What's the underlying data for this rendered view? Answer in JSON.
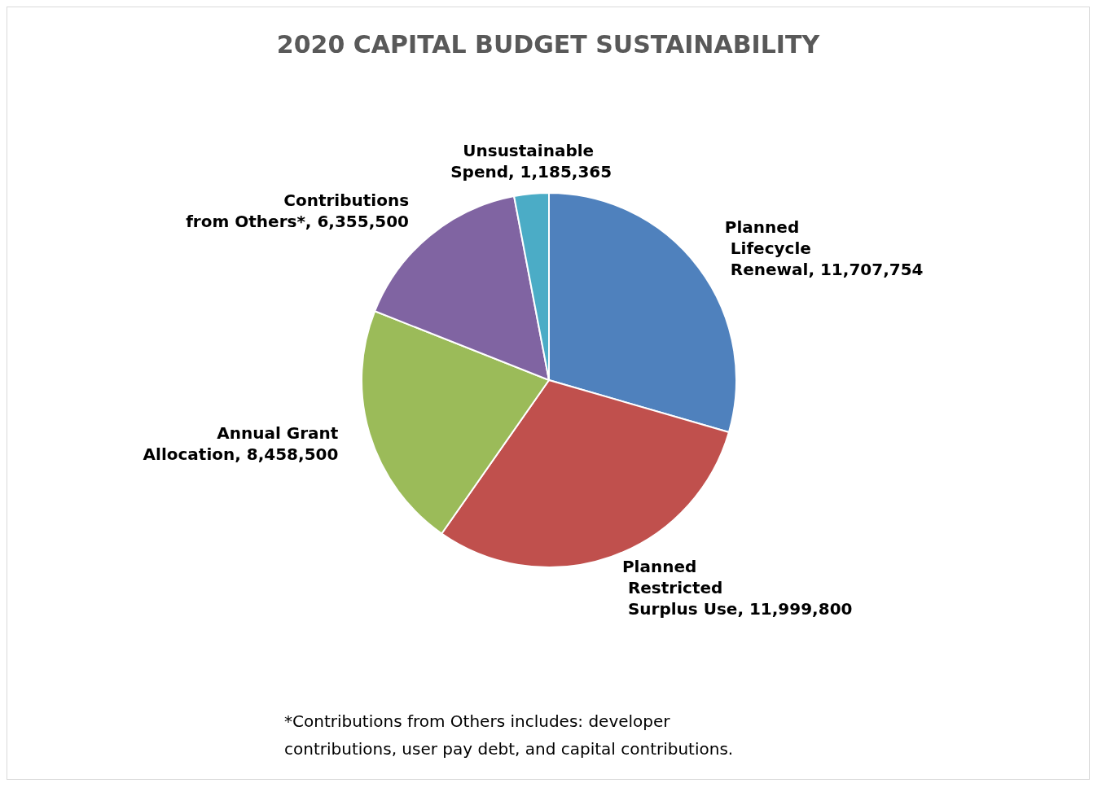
{
  "chart_data": {
    "type": "pie",
    "title": "2020 CAPITAL BUDGET SUSTAINABILITY",
    "categories": [
      "Planned Lifecycle Renewal",
      "Planned Restricted Surplus Use",
      "Annual Grant Allocation",
      "Contributions from Others*",
      "Unsustainable Spend"
    ],
    "value_labels": [
      "11,707,754",
      "11,999,800",
      "8,458,500",
      "6,355,500",
      "1,185,365"
    ],
    "values": [
      11707754,
      11999800,
      8458500,
      6355500,
      1185365
    ],
    "colors": [
      "#4f81bd",
      "#c0504d",
      "#9bbb59",
      "#8064a2",
      "#4bacc6"
    ],
    "annotations": [
      "*Contributions from Others includes: developer contributions, user pay debt, and capital contributions."
    ]
  }
}
